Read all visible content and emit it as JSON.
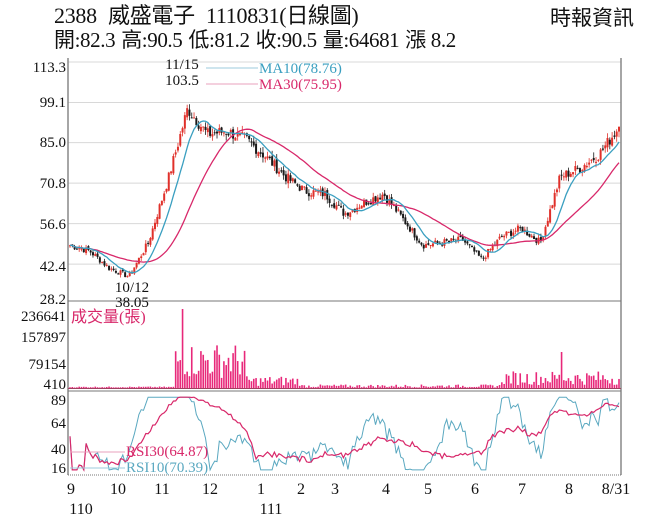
{
  "header": {
    "code": "2388",
    "name": "威盛電子",
    "date_type": "1110831(日線圖)",
    "brand": "時報資訊",
    "open_label": "開:82.3",
    "high_label": "高:90.5",
    "low_label": "低:81.2",
    "close_label": "收:90.5",
    "volume_label": "量:64681",
    "change_label": "漲 8.2"
  },
  "price_panel": {
    "y_ticks": [
      "113.3",
      "99.1",
      "85.0",
      "70.8",
      "56.6",
      "42.4",
      "28.2"
    ],
    "high_annotation": {
      "date": "11/15",
      "value": "103.5"
    },
    "low_annotation": {
      "date": "10/12",
      "value": "38.05"
    },
    "legend": {
      "ma10": "MA10(78.76)",
      "ma30": "MA30(75.95)"
    }
  },
  "volume_panel": {
    "title": "成交量(張)",
    "y_ticks": [
      "236641",
      "157897",
      "79154",
      "410"
    ]
  },
  "rsi_panel": {
    "y_ticks": [
      "89",
      "64",
      "40",
      "16"
    ],
    "legend": {
      "rsi30": "RSI30(64.87)",
      "rsi10": "RSI10(70.39)"
    }
  },
  "x_axis": {
    "ticks": [
      "9",
      "10",
      "11",
      "12",
      "1",
      "2",
      "3",
      "4",
      "5",
      "6",
      "7",
      "8",
      "8/31"
    ],
    "year_labels": [
      "110",
      "111"
    ]
  },
  "colors": {
    "up": "#e0302a",
    "down": "#1a1a1a",
    "ma10": "#3a9fc0",
    "ma30": "#d8286a",
    "volume": "#e8287a",
    "rsi10": "#5aa8c0",
    "rsi30": "#d8286a",
    "grid": "#d8d8d8",
    "axis": "#888888"
  },
  "chart_data": {
    "type": "candlestick",
    "title": "2388 威盛電子 1110831(日線圖)",
    "xlabel": "",
    "ylabel": "",
    "ylim": [
      28.2,
      113.3
    ],
    "month_ticks": [
      "9",
      "10",
      "11",
      "12",
      "1",
      "2",
      "3",
      "4",
      "5",
      "6",
      "7",
      "8",
      "8/31"
    ],
    "close_path": [
      {
        "x": "9",
        "close": 49
      },
      {
        "x": "9m",
        "close": 47
      },
      {
        "x": "10",
        "close": 41
      },
      {
        "x": "10/12",
        "close": 38.05
      },
      {
        "x": "10m",
        "close": 50
      },
      {
        "x": "10e",
        "close": 72
      },
      {
        "x": "11/15",
        "close": 97
      },
      {
        "x": "11e",
        "close": 88
      },
      {
        "x": "12",
        "close": 89
      },
      {
        "x": "12m",
        "close": 86
      },
      {
        "x": "1",
        "close": 80
      },
      {
        "x": "1m",
        "close": 73
      },
      {
        "x": "2",
        "close": 68
      },
      {
        "x": "2m",
        "close": 67
      },
      {
        "x": "3",
        "close": 60
      },
      {
        "x": "3m",
        "close": 64
      },
      {
        "x": "4",
        "close": 67
      },
      {
        "x": "4m",
        "close": 58
      },
      {
        "x": "5",
        "close": 49
      },
      {
        "x": "5m",
        "close": 50
      },
      {
        "x": "6",
        "close": 51
      },
      {
        "x": "6m",
        "close": 44
      },
      {
        "x": "6e",
        "close": 52
      },
      {
        "x": "7",
        "close": 55
      },
      {
        "x": "7m",
        "close": 50
      },
      {
        "x": "7e",
        "close": 73
      },
      {
        "x": "8",
        "close": 76
      },
      {
        "x": "8m",
        "close": 81
      },
      {
        "x": "8/31",
        "close": 90.5
      }
    ],
    "series": [
      {
        "name": "MA10",
        "last": 78.76
      },
      {
        "name": "MA30",
        "last": 75.95
      },
      {
        "name": "RSI30",
        "last": 64.87
      },
      {
        "name": "RSI10",
        "last": 70.39
      }
    ],
    "volume_ylim": [
      410,
      236641
    ],
    "volume_peak": {
      "x": "11/15",
      "value": 236641
    },
    "rsi_ylim": [
      16,
      89
    ],
    "summary": {
      "open": 82.3,
      "high": 90.5,
      "low": 81.2,
      "close": 90.5,
      "volume": 64681,
      "change": 8.2
    }
  }
}
